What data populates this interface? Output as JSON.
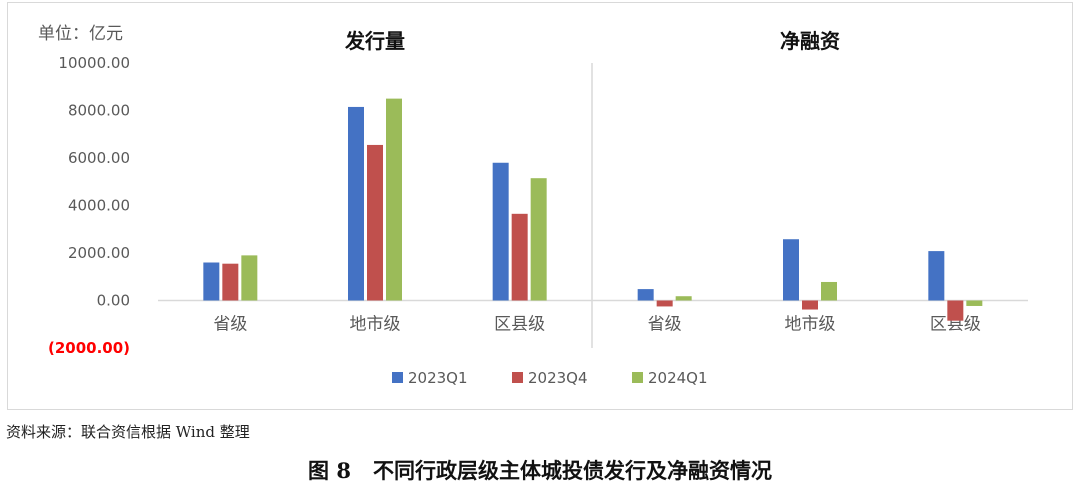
{
  "chart_data": {
    "type": "bar",
    "unit_label": "单位：亿元",
    "panels": [
      {
        "title": "发行量",
        "categories": [
          "省级",
          "地市级",
          "区县级"
        ],
        "series": [
          {
            "name": "2023Q1",
            "color": "#4472c4",
            "values": [
              1600,
              8150,
              5800
            ]
          },
          {
            "name": "2023Q4",
            "color": "#c0504d",
            "values": [
              1550,
              6550,
              3650
            ]
          },
          {
            "name": "2024Q1",
            "color": "#9bbb59",
            "values": [
              1900,
              8500,
              5150
            ]
          }
        ]
      },
      {
        "title": "净融资",
        "categories": [
          "省级",
          "地市级",
          "区县级"
        ],
        "series": [
          {
            "name": "2023Q1",
            "color": "#4472c4",
            "values": [
              480,
              2580,
              2080
            ]
          },
          {
            "name": "2023Q4",
            "color": "#c0504d",
            "values": [
              -250,
              -380,
              -850
            ]
          },
          {
            "name": "2024Q1",
            "color": "#9bbb59",
            "values": [
              180,
              780,
              -230
            ]
          }
        ]
      }
    ],
    "ylim": [
      -2000,
      10000
    ],
    "yticks": [
      "10000.00",
      "8000.00",
      "6000.00",
      "4000.00",
      "2000.00",
      "0.00",
      "(2000.00)"
    ],
    "ytick_values": [
      10000,
      8000,
      6000,
      4000,
      2000,
      0,
      -2000
    ],
    "negative_tick_color": "#ff0000",
    "legend": [
      "2023Q1",
      "2023Q4",
      "2024Q1"
    ],
    "legend_position": "bottom",
    "grid": false
  },
  "source_note": "资料来源：联合资信根据 Wind 整理",
  "figure_caption": {
    "number": "图 8",
    "text": "不同行政层级主体城投债发行及净融资情况"
  }
}
